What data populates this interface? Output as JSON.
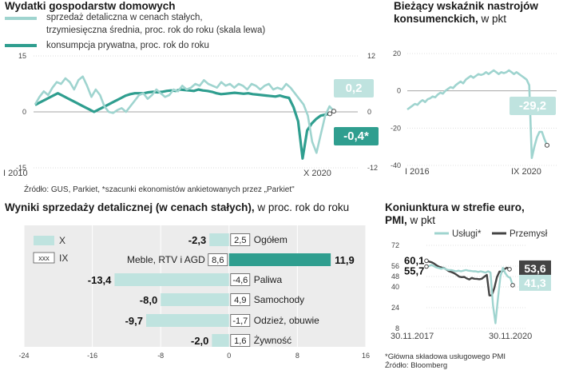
{
  "colors": {
    "light": "#9fd4cf",
    "dark": "#2f9e8f",
    "gray": "#555555",
    "pmi_dark": "#444444",
    "box_light": "#bfe3df",
    "box_dark": "#2f9e8f"
  },
  "panel1": {
    "title": "Wydatki gospodarstw domowych",
    "legend_light_line1": "sprzedaż detaliczna w cenach stałych,",
    "legend_light_line2": "trzymiesięczna średnia, proc. rok do roku (skala lewa)",
    "legend_dark": "konsumpcja prywatna, proc. rok do roku",
    "left_ticks": [
      "15",
      "0",
      "-15"
    ],
    "right_ticks": [
      "12",
      "0",
      "-12"
    ],
    "x_start": "I 2010",
    "x_end": "X 2020",
    "callout_light": "0,2",
    "callout_dark": "-0,4*",
    "source": "Źródło: GUS, Parkiet, *szacunki ekonomistów ankietowanych przez „Parkiet\""
  },
  "panel2": {
    "title_line1": "Bieżący wskaźnik nastrojów",
    "title_line2_bold": "konsumenckich,",
    "title_line2_normal": " w pkt",
    "ticks": [
      "20",
      "0",
      "-20",
      "-40"
    ],
    "x_start": "I 2016",
    "x_end": "IX 2020",
    "callout": "-29,2"
  },
  "panel3": {
    "title_bold": "Wyniki sprzedaży detalicznej (w cenach stałych),",
    "title_normal": " w proc. rok do roku",
    "legend_x": "X",
    "legend_ix_box": "xxx",
    "legend_ix": "IX",
    "x_ticks": [
      "-24",
      "-16",
      "-8",
      "0",
      "8",
      "16"
    ]
  },
  "chart_data": [
    {
      "type": "line",
      "title": "Wydatki gospodarstw domowych",
      "x_range": [
        "I 2010",
        "X 2020"
      ],
      "series": [
        {
          "name": "sprzedaż detaliczna w cenach stałych, trzymiesięczna średnia, proc. rok do roku (skala lewa)",
          "axis": "left",
          "ylim": [
            -15,
            15
          ],
          "values": [
            2,
            4,
            5.5,
            4.5,
            6.5,
            8,
            7.5,
            9,
            8,
            6,
            8.5,
            9.5,
            7,
            4,
            6,
            4.5,
            1.5,
            0,
            -0.3,
            0.5,
            1,
            0,
            1.5,
            3,
            4.5,
            5,
            3.5,
            4.5,
            6,
            5,
            4,
            4.5,
            6,
            5.5,
            7,
            6,
            6.5,
            7.5,
            7,
            8.5,
            7.5,
            7,
            6.5,
            8,
            7,
            7.5,
            6.5,
            7.5,
            7,
            6,
            7.5,
            7,
            6,
            7,
            7.5,
            6,
            6.5,
            6,
            7.5,
            6.5,
            5,
            3.5,
            2,
            -1,
            -8,
            -11,
            -6,
            -1,
            1.5,
            0.2
          ]
        },
        {
          "name": "konsumpcja prywatna, proc. rok do roku",
          "axis": "right",
          "ylim": [
            -12,
            12
          ],
          "values": [
            1.5,
            2,
            2.5,
            3,
            3.5,
            4,
            3.5,
            3,
            2.5,
            2,
            1.5,
            1,
            0.5,
            0,
            0.5,
            1,
            1.5,
            2,
            2.5,
            3,
            3.5,
            3.8,
            4,
            4,
            4,
            4.2,
            4.3,
            4.2,
            4.3,
            4.5,
            4.6,
            4.5,
            4.8,
            4.7,
            4.6,
            4.5,
            4.8,
            4.6,
            4.5,
            4.3,
            4,
            3.8,
            3.9,
            4,
            4.1,
            4,
            3.9,
            4,
            3.8,
            3.7,
            3.6,
            3.5,
            3.4,
            3.3,
            3.5,
            3.2,
            3,
            1,
            -2,
            -10,
            -4,
            -2.5,
            -1.5,
            -0.8,
            -0.6,
            -0.4
          ]
        }
      ]
    },
    {
      "type": "line",
      "title": "Bieżący wskaźnik nastrojów konsumenckich, w pkt",
      "x_range": [
        "I 2016",
        "IX 2020"
      ],
      "ylim": [
        -40,
        20
      ],
      "series": [
        {
          "name": "Bieżący wskaźnik nastrojów konsumenckich",
          "values": [
            -10,
            -9,
            -8,
            -7,
            -7.5,
            -6,
            -5,
            -6,
            -4.5,
            -4,
            -3,
            -3.5,
            -2,
            -1,
            -1.5,
            0,
            1,
            2,
            1.5,
            3,
            4,
            5,
            4,
            6,
            7,
            8,
            7,
            8,
            9,
            8.5,
            9,
            10,
            9,
            10,
            11,
            10,
            9,
            10,
            9.5,
            10,
            11,
            10,
            9,
            10,
            9,
            8,
            7,
            6,
            3,
            -36,
            -30,
            -25,
            -22,
            -22,
            -26,
            -29.2
          ]
        }
      ]
    },
    {
      "type": "bar",
      "title": "Wyniki sprzedaży detalicznej (w cenach stałych), w proc. rok do roku",
      "xlim": [
        -24,
        16
      ],
      "categories": [
        "Ogółem",
        "Meble, RTV i AGD",
        "Paliwa",
        "Samochody",
        "Odzież, obuwie",
        "Żywność"
      ],
      "series": [
        {
          "name": "X",
          "values": [
            -2.3,
            11.9,
            -13.4,
            -8.0,
            -9.7,
            -2.0
          ]
        },
        {
          "name": "IX",
          "values": [
            2.5,
            8.6,
            -4.6,
            4.9,
            -1.7,
            1.6
          ]
        }
      ],
      "value_labels_x": [
        "-2,3",
        "11,9",
        "-13,4",
        "-8,0",
        "-9,7",
        "-2,0"
      ],
      "value_labels_ix": [
        "2,5",
        "8,6",
        "-4,6",
        "4,9",
        "-1,7",
        "1,6"
      ],
      "highlight": "Meble, RTV i AGD"
    },
    {
      "type": "line",
      "title": "Koniunktura w strefie euro, PMI, w pkt",
      "x_range": [
        "30.11.2017",
        "30.11.2020"
      ],
      "ylim": [
        8,
        72
      ],
      "y_ticks": [
        "72",
        "56",
        "48",
        "40",
        "24",
        "8"
      ],
      "series": [
        {
          "name": "Usługi*",
          "start_label": "55,7",
          "end_label": "41,3",
          "values": [
            55.7,
            56,
            57,
            56,
            55,
            54.5,
            54,
            54.5,
            53.5,
            53,
            53,
            52.5,
            52,
            52.5,
            52,
            52.5,
            53,
            52.5,
            52.3,
            52,
            52,
            51.5,
            52,
            51.5,
            51,
            52,
            51,
            26,
            12,
            31,
            48,
            54.7,
            50.5,
            48,
            46.9,
            41.3
          ]
        },
        {
          "name": "Przemysł",
          "start_label": "60,1",
          "end_label": "53,6",
          "values": [
            60.1,
            59.5,
            59,
            58,
            56.6,
            55.5,
            54.9,
            54.6,
            53.2,
            52,
            51.4,
            50.5,
            49.3,
            47.9,
            47.5,
            47.7,
            46.5,
            45.7,
            46.9,
            46.3,
            46.2,
            45.9,
            46.3,
            47.9,
            49.2,
            33.4,
            33.5,
            39.4,
            47.4,
            51.8,
            51.7,
            53.7,
            54.8,
            53.6
          ]
        }
      ]
    }
  ],
  "panel4": {
    "title_line1": "Koniunktura w strefie euro,",
    "title_line2_bold": "PMI,",
    "title_line2_normal": " w pkt",
    "legend_services": "Usługi*",
    "legend_industry": "Przemysł",
    "x_start": "30.11.2017",
    "x_end": "30.11.2020",
    "footnote": "*Główna składowa usługowego PMI",
    "source": "Źródło: Bloomberg"
  }
}
